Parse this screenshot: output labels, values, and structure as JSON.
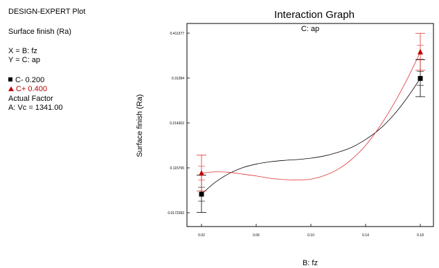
{
  "side_panel": {
    "plot_title": "DESIGN-EXPERT Plot",
    "response": "Surface finish (Ra)",
    "x_line": "X = B: fz",
    "y_line": "Y = C: ap",
    "legend": [
      {
        "marker": "square",
        "label": "C- 0.200",
        "color": "#000000"
      },
      {
        "marker": "triangle",
        "label": "C+ 0.400",
        "color": "#c00000"
      }
    ],
    "actual_factor_heading": "Actual Factor",
    "actual_factor_value": "A: Vc = 1341.00"
  },
  "chart_data": {
    "type": "line",
    "title": "Interaction Graph",
    "subtitle": "C: ap",
    "xlabel": "B: fz",
    "ylabel": "Surface finish (Ra)",
    "xlim": [
      0.02,
      0.18
    ],
    "ylim": [
      0.0172282,
      0.411377
    ],
    "x_ticks": [
      0.02,
      0.06,
      0.1,
      0.14,
      0.18
    ],
    "x_tick_labels": [
      "0.02",
      "0.06",
      "0.10",
      "0.14",
      "0.18"
    ],
    "y_ticks": [
      0.0172282,
      0.115765,
      0.214302,
      0.31284,
      0.411377
    ],
    "y_tick_labels": [
      "0.0172282",
      "0.115765",
      "0.214302",
      "0.31284",
      "0.411377"
    ],
    "series": [
      {
        "name": "C- 0.200",
        "color": "#000000",
        "marker": "square",
        "points": [
          {
            "x": 0.02,
            "y": 0.058,
            "err_low": 0.018,
            "err_high": 0.1
          },
          {
            "x": 0.18,
            "y": 0.312,
            "err_low": 0.272,
            "err_high": 0.353
          }
        ],
        "curve": [
          [
            0.02,
            0.058
          ],
          [
            0.03,
            0.084
          ],
          [
            0.04,
            0.103
          ],
          [
            0.05,
            0.116
          ],
          [
            0.06,
            0.124
          ],
          [
            0.07,
            0.129
          ],
          [
            0.08,
            0.132
          ],
          [
            0.09,
            0.134
          ],
          [
            0.1,
            0.137
          ],
          [
            0.11,
            0.142
          ],
          [
            0.12,
            0.15
          ],
          [
            0.13,
            0.161
          ],
          [
            0.14,
            0.178
          ],
          [
            0.15,
            0.2
          ],
          [
            0.16,
            0.23
          ],
          [
            0.17,
            0.268
          ],
          [
            0.18,
            0.312
          ]
        ]
      },
      {
        "name": "C+ 0.400",
        "color": "#e03030",
        "marker": "triangle",
        "points": [
          {
            "x": 0.02,
            "y": 0.104,
            "err_low": 0.065,
            "err_high": 0.144
          },
          {
            "x": 0.18,
            "y": 0.37,
            "err_low": 0.33,
            "err_high": 0.411
          }
        ],
        "curve": [
          [
            0.02,
            0.104
          ],
          [
            0.03,
            0.107
          ],
          [
            0.04,
            0.106
          ],
          [
            0.05,
            0.102
          ],
          [
            0.06,
            0.098
          ],
          [
            0.07,
            0.093
          ],
          [
            0.08,
            0.09
          ],
          [
            0.09,
            0.089
          ],
          [
            0.1,
            0.091
          ],
          [
            0.11,
            0.099
          ],
          [
            0.12,
            0.113
          ],
          [
            0.13,
            0.135
          ],
          [
            0.14,
            0.165
          ],
          [
            0.15,
            0.205
          ],
          [
            0.16,
            0.253
          ],
          [
            0.17,
            0.308
          ],
          [
            0.18,
            0.37
          ]
        ]
      }
    ]
  }
}
